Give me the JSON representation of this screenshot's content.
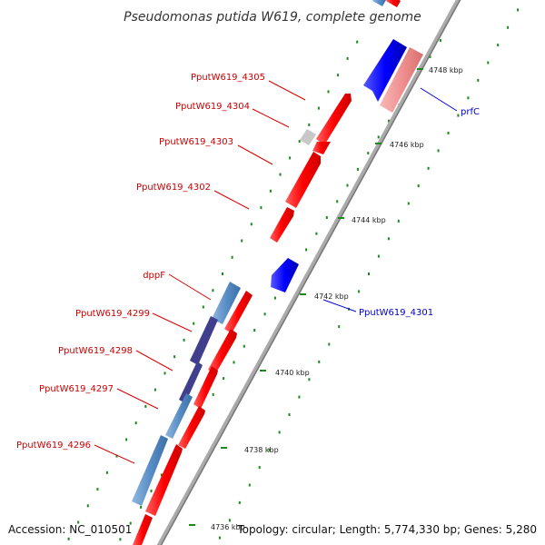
{
  "title": "Pseudomonas putida W619, complete genome",
  "footer": {
    "accession": "Accession: NC_010501",
    "summary": "Topology: circular; Length: 5,774,330 bp; Genes: 5,280"
  },
  "colors": {
    "gene_red": "#ff0000",
    "gene_blue": "#0000ff",
    "gene_steel_blue": "#5a8ec6",
    "gene_pink": "#f09090",
    "gene_gray": "#c8c8c8",
    "backbone": "#999999",
    "tick_green": "#1a8a1a",
    "label_red": "#cc0000",
    "label_blue": "#0000cc"
  },
  "ticks": [
    {
      "label": "4748 kbp"
    },
    {
      "label": "4746 kbp"
    },
    {
      "label": "4744 kbp"
    },
    {
      "label": "4742 kbp"
    },
    {
      "label": "4740 kbp"
    },
    {
      "label": "4738 kbp"
    },
    {
      "label": "4736 kbp"
    }
  ],
  "genes": [
    {
      "name": "PputW619_4305",
      "color": "red"
    },
    {
      "name": "PputW619_4304",
      "color": "red"
    },
    {
      "name": "PputW619_4303",
      "color": "red"
    },
    {
      "name": "PputW619_4302",
      "color": "red"
    },
    {
      "name": "dppF",
      "color": "red"
    },
    {
      "name": "PputW619_4299",
      "color": "red"
    },
    {
      "name": "PputW619_4298",
      "color": "red"
    },
    {
      "name": "PputW619_4297",
      "color": "red"
    },
    {
      "name": "PputW619_4296",
      "color": "red"
    },
    {
      "name": "prfC",
      "color": "blue"
    },
    {
      "name": "PputW619_4301",
      "color": "blue"
    }
  ]
}
